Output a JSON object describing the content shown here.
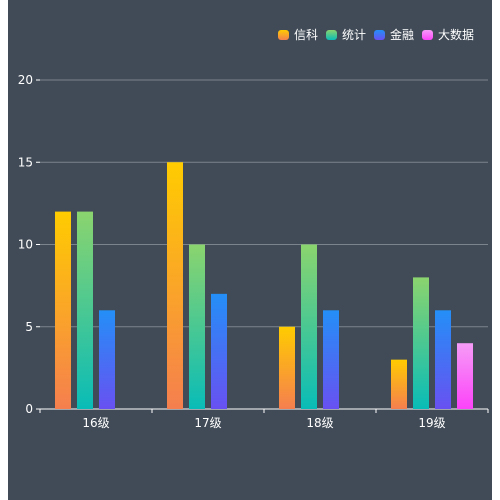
{
  "chart_data": {
    "type": "bar",
    "categories": [
      "16级",
      "17级",
      "18级",
      "19级"
    ],
    "series": [
      {
        "name": "信科",
        "values": [
          12,
          15,
          5,
          3
        ],
        "color_top": "#ffcc00",
        "color_bottom": "#f57f4f"
      },
      {
        "name": "统计",
        "values": [
          12,
          10,
          10,
          8
        ],
        "color_top": "#8bd46e",
        "color_bottom": "#09bcb7"
      },
      {
        "name": "金融",
        "values": [
          6,
          7,
          6,
          6
        ],
        "color_top": "#248ff7",
        "color_bottom": "#6851f1"
      },
      {
        "name": "大数据",
        "values": [
          0,
          0,
          0,
          4
        ],
        "color_top": "#f69cf7",
        "color_bottom": "#fc43f9"
      }
    ],
    "yticks": [
      0,
      5,
      10,
      15,
      20
    ],
    "ylim": [
      0,
      20
    ],
    "grid": true,
    "legend_position": "top-right",
    "background": "#414b57",
    "axis_color": "#ffffff",
    "grid_color": "#7b838d"
  }
}
